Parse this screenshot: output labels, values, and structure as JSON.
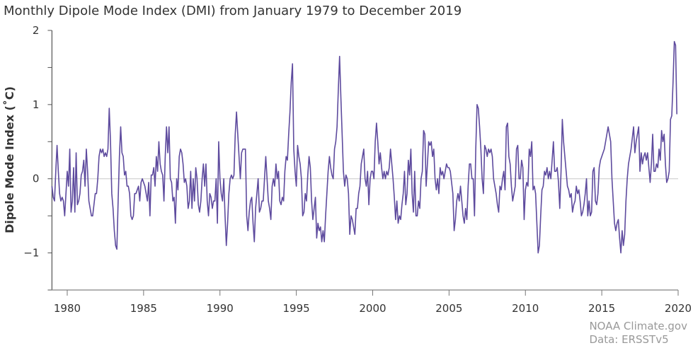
{
  "chart_data": {
    "type": "line",
    "title": "Monthly Dipole Mode Index (DMI) from January 1979 to December 2019",
    "xlabel": "",
    "ylabel": "Dipole Mode Index (˚C)",
    "x_start": "1979-01",
    "x_frequency": "monthly",
    "xlim": [
      1979,
      2020
    ],
    "ylim": [
      -1.5,
      2
    ],
    "x_ticks": [
      "1980",
      "1985",
      "1990",
      "1995",
      "2000",
      "2005",
      "2010",
      "2015",
      "2020"
    ],
    "y_ticks": [
      "2",
      "1",
      "0",
      "−1"
    ],
    "grid": "zero line only",
    "line_color": "#5e4b9e",
    "series": [
      {
        "name": "DMI",
        "values": [
          -0.1,
          -0.25,
          -0.3,
          0.1,
          0.45,
          0.1,
          -0.2,
          -0.3,
          -0.25,
          -0.3,
          -0.5,
          -0.2,
          0.1,
          -0.1,
          0.4,
          -0.45,
          -0.3,
          0.15,
          -0.45,
          0.35,
          -0.35,
          -0.3,
          -0.2,
          0.05,
          0.1,
          0.25,
          -0.1,
          0.4,
          0.1,
          -0.3,
          -0.4,
          -0.5,
          -0.5,
          -0.35,
          -0.2,
          -0.2,
          0.0,
          0.3,
          0.4,
          0.35,
          0.4,
          0.3,
          0.35,
          0.3,
          0.4,
          0.95,
          0.5,
          -0.2,
          -0.4,
          -0.7,
          -0.9,
          -0.95,
          -0.3,
          0.3,
          0.7,
          0.35,
          0.3,
          0.05,
          0.1,
          -0.1,
          -0.1,
          -0.2,
          -0.5,
          -0.55,
          -0.5,
          -0.2,
          -0.2,
          -0.15,
          -0.1,
          -0.3,
          -0.05,
          0.0,
          -0.05,
          -0.1,
          -0.2,
          -0.3,
          -0.05,
          -0.5,
          0.05,
          0.05,
          0.15,
          -0.1,
          0.3,
          0.1,
          0.5,
          0.2,
          0.1,
          0.05,
          -0.3,
          0.3,
          0.7,
          0.35,
          0.7,
          0.0,
          -0.05,
          -0.3,
          -0.25,
          -0.6,
          0.0,
          -0.15,
          0.3,
          0.4,
          0.35,
          0.2,
          -0.05,
          0.0,
          -0.1,
          -0.4,
          -0.3,
          0.1,
          -0.4,
          0.0,
          -0.3,
          0.15,
          0.0,
          -0.35,
          -0.45,
          -0.3,
          0.0,
          0.2,
          -0.1,
          0.2,
          -0.3,
          -0.5,
          -0.2,
          -0.25,
          -0.4,
          -0.3,
          -0.3,
          0.0,
          -0.6,
          0.5,
          0.0,
          -0.2,
          -0.3,
          0.0,
          -0.5,
          -0.9,
          -0.6,
          -0.2,
          0.0,
          0.05,
          0.0,
          0.05,
          0.6,
          0.9,
          0.6,
          0.3,
          0.0,
          0.35,
          0.4,
          0.4,
          0.4,
          -0.5,
          -0.7,
          -0.45,
          -0.3,
          -0.25,
          -0.6,
          -0.85,
          -0.4,
          -0.2,
          0.0,
          -0.45,
          -0.4,
          -0.3,
          -0.3,
          0.0,
          0.3,
          0.0,
          -0.3,
          -0.4,
          -0.55,
          -0.1,
          0.0,
          -0.1,
          0.2,
          0.0,
          0.1,
          -0.3,
          -0.35,
          -0.25,
          -0.3,
          0.1,
          0.3,
          0.25,
          0.6,
          0.9,
          1.3,
          1.55,
          0.4,
          0.1,
          -0.1,
          0.45,
          0.3,
          0.2,
          0.0,
          -0.5,
          -0.45,
          -0.2,
          -0.3,
          0.05,
          0.3,
          0.15,
          -0.3,
          -0.55,
          -0.4,
          -0.25,
          -0.8,
          -0.6,
          -0.7,
          -0.65,
          -0.85,
          -0.7,
          -0.85,
          -0.5,
          -0.2,
          0.1,
          0.3,
          0.15,
          0.05,
          0.0,
          0.4,
          0.5,
          0.7,
          1.2,
          1.65,
          1.1,
          0.6,
          0.1,
          -0.1,
          0.05,
          0.0,
          -0.2,
          -0.75,
          -0.5,
          -0.55,
          -0.65,
          -0.75,
          -0.4,
          -0.4,
          -0.2,
          -0.1,
          0.2,
          0.3,
          0.4,
          0.0,
          -0.1,
          0.1,
          -0.35,
          0.0,
          0.1,
          0.1,
          0.0,
          0.5,
          0.75,
          0.5,
          0.2,
          0.35,
          0.15,
          0.0,
          0.1,
          0.0,
          0.1,
          0.05,
          0.15,
          0.4,
          0.2,
          0.0,
          -0.25,
          -0.55,
          -0.3,
          -0.6,
          -0.5,
          -0.55,
          -0.35,
          -0.2,
          0.1,
          -0.35,
          -0.2,
          0.25,
          0.05,
          0.4,
          -0.2,
          -0.45,
          0.1,
          -0.5,
          -0.5,
          -0.3,
          -0.4,
          0.0,
          0.1,
          0.65,
          0.6,
          -0.1,
          0.2,
          0.5,
          0.45,
          0.5,
          0.3,
          0.4,
          0.0,
          -0.15,
          0.0,
          -0.2,
          0.15,
          0.05,
          0.1,
          0.0,
          0.1,
          0.2,
          0.15,
          0.15,
          0.1,
          -0.05,
          -0.2,
          -0.7,
          -0.55,
          -0.3,
          -0.2,
          -0.3,
          -0.1,
          -0.3,
          -0.5,
          -0.6,
          -0.4,
          -0.55,
          -0.1,
          0.2,
          0.2,
          0.0,
          0.0,
          -0.5,
          0.4,
          1.0,
          0.95,
          0.7,
          0.4,
          0.0,
          -0.2,
          0.45,
          0.4,
          0.3,
          0.4,
          0.35,
          0.4,
          0.3,
          0.0,
          -0.1,
          -0.2,
          -0.35,
          -0.45,
          -0.1,
          -0.15,
          0.0,
          0.1,
          -0.15,
          0.7,
          0.75,
          0.3,
          0.2,
          -0.1,
          -0.3,
          -0.2,
          -0.1,
          0.4,
          0.45,
          0.0,
          0.0,
          0.25,
          0.15,
          -0.55,
          -0.15,
          -0.05,
          -0.1,
          0.4,
          0.3,
          0.5,
          -0.15,
          -0.1,
          -0.2,
          -0.6,
          -1.0,
          -0.9,
          -0.5,
          -0.15,
          -0.1,
          0.1,
          0.05,
          0.15,
          0.0,
          0.1,
          0.0,
          0.25,
          0.5,
          0.1,
          0.1,
          0.15,
          -0.05,
          -0.4,
          0.1,
          0.8,
          0.5,
          0.3,
          0.1,
          -0.1,
          -0.15,
          -0.25,
          -0.2,
          -0.45,
          -0.35,
          -0.3,
          -0.1,
          -0.2,
          -0.15,
          -0.3,
          -0.5,
          -0.45,
          -0.35,
          -0.2,
          0.0,
          -0.5,
          -0.3,
          -0.5,
          -0.45,
          0.1,
          0.15,
          -0.3,
          -0.35,
          -0.2,
          0.15,
          0.25,
          0.3,
          0.35,
          0.4,
          0.5,
          0.6,
          0.7,
          0.6,
          0.5,
          0.0,
          -0.3,
          -0.6,
          -0.7,
          -0.6,
          -0.55,
          -0.8,
          -1.0,
          -0.7,
          -0.9,
          -0.75,
          -0.3,
          0.0,
          0.2,
          0.3,
          0.4,
          0.55,
          0.7,
          0.35,
          0.5,
          0.6,
          0.7,
          0.1,
          0.35,
          0.2,
          0.3,
          0.35,
          0.25,
          0.35,
          0.15,
          -0.05,
          0.2,
          0.6,
          0.1,
          0.1,
          0.2,
          0.15,
          0.4,
          0.25,
          0.65,
          0.5,
          0.6,
          0.2,
          -0.05,
          0.0,
          0.1,
          0.8,
          0.85,
          1.3,
          1.85,
          1.8,
          0.87
        ]
      }
    ]
  },
  "credits": {
    "line1": "NOAA Climate.gov",
    "line2": "Data: ERSSTv5"
  }
}
